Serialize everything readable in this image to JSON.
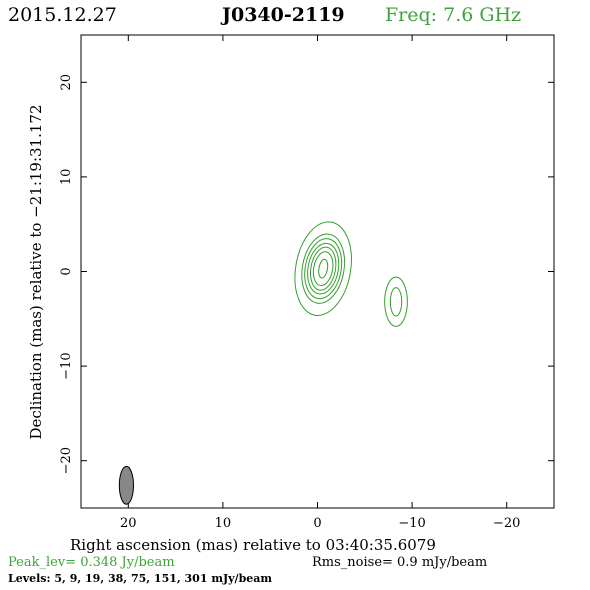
{
  "chart_data": {
    "type": "contour",
    "date": "2015.12.27",
    "source": "J0340-2119",
    "freq": "Freq: 7.6 GHz",
    "xlabel": "Right ascension (mas) relative to 03:40:35.6079",
    "ylabel": "Declination (mas) relative to −21:19:31.172",
    "xlim": [
      25,
      -25
    ],
    "ylim": [
      -25,
      25
    ],
    "x_ticks": [
      20,
      10,
      0,
      -10,
      -20
    ],
    "y_ticks": [
      20,
      10,
      0,
      -10,
      -20
    ],
    "x_tick_labels": [
      "20",
      "10",
      "0",
      "−10",
      "−20"
    ],
    "y_tick_labels": [
      "20",
      "10",
      "0",
      "−10",
      "−20"
    ],
    "peak": "Peak_lev=  0.348 Jy/beam",
    "rms": "Rms_noise=  0.9 mJy/beam",
    "levels_text": "Levels:   5,   9,  19,  38,  75, 151, 301 mJy/beam",
    "levels_mjy": [
      5,
      9,
      19,
      38,
      75,
      151,
      301
    ],
    "components": [
      {
        "center": [
          -0.6,
          0.3
        ],
        "major_axis": [
          10.0,
          7.4,
          6.4,
          5.4,
          4.6,
          3.6,
          2.0
        ],
        "minor_axis": [
          5.8,
          4.4,
          3.8,
          3.2,
          2.6,
          2.0,
          0.9
        ],
        "pa_deg": 10
      },
      {
        "center": [
          -8.3,
          -3.2
        ],
        "major_axis": [
          5.2,
          3.0
        ],
        "minor_axis": [
          2.4,
          1.2
        ],
        "pa_deg": 0
      }
    ],
    "beam": {
      "center": [
        20.2,
        -22.6
      ],
      "major": 4.0,
      "minor": 1.5,
      "pa_deg": 0
    },
    "colors": {
      "contour": "#33a02c",
      "green_text": "#3fa23a",
      "beam_fill": "#888888"
    }
  }
}
